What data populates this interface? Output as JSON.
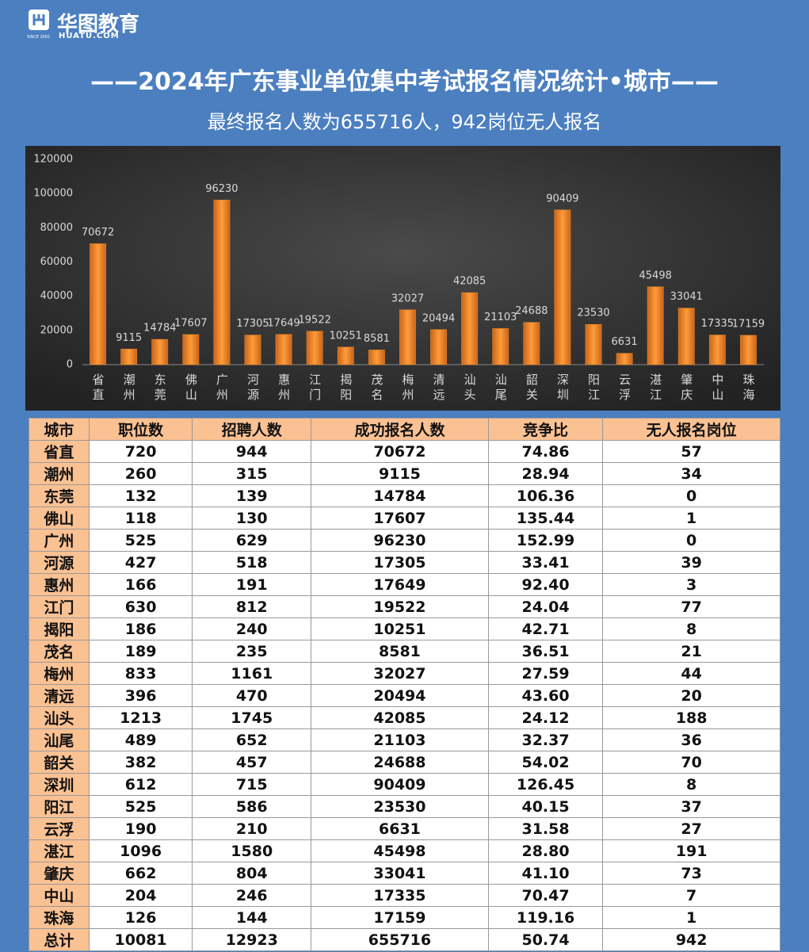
{
  "header": {
    "logo": {
      "brand": "华图教育",
      "site": "HUATU.COM",
      "since": "SINCE 2001"
    },
    "title": "——2024年广东事业单位集中考试报名情况统计•城市——",
    "subtitle": "最终报名人数为655716人，942岗位无人报名"
  },
  "chart_data": {
    "type": "bar",
    "categories": [
      "省直",
      "潮州",
      "东莞",
      "佛山",
      "广州",
      "河源",
      "惠州",
      "江门",
      "揭阳",
      "茂名",
      "梅州",
      "清远",
      "汕头",
      "汕尾",
      "韶关",
      "深圳",
      "阳江",
      "云浮",
      "湛江",
      "肇庆",
      "中山",
      "珠海"
    ],
    "values": [
      70672,
      9115,
      14784,
      17607,
      96230,
      17305,
      17649,
      19522,
      10251,
      8581,
      32027,
      20494,
      42085,
      21103,
      24688,
      90409,
      23530,
      6631,
      45498,
      33041,
      17335,
      17159
    ],
    "color": "#f08a24",
    "ylim": [
      0,
      120000
    ],
    "yticks": [
      0,
      20000,
      40000,
      60000,
      80000,
      100000,
      120000
    ],
    "grid": false
  },
  "table": {
    "header": [
      "城市",
      "职位数",
      "招聘人数",
      "成功报名人数",
      "竞争比",
      "无人报名岗位"
    ],
    "rows": [
      [
        "省直",
        "720",
        "944",
        "70672",
        "74.86",
        "57"
      ],
      [
        "潮州",
        "260",
        "315",
        "9115",
        "28.94",
        "34"
      ],
      [
        "东莞",
        "132",
        "139",
        "14784",
        "106.36",
        "0"
      ],
      [
        "佛山",
        "118",
        "130",
        "17607",
        "135.44",
        "1"
      ],
      [
        "广州",
        "525",
        "629",
        "96230",
        "152.99",
        "0"
      ],
      [
        "河源",
        "427",
        "518",
        "17305",
        "33.41",
        "39"
      ],
      [
        "惠州",
        "166",
        "191",
        "17649",
        "92.40",
        "3"
      ],
      [
        "江门",
        "630",
        "812",
        "19522",
        "24.04",
        "77"
      ],
      [
        "揭阳",
        "186",
        "240",
        "10251",
        "42.71",
        "8"
      ],
      [
        "茂名",
        "189",
        "235",
        "8581",
        "36.51",
        "21"
      ],
      [
        "梅州",
        "833",
        "1161",
        "32027",
        "27.59",
        "44"
      ],
      [
        "清远",
        "396",
        "470",
        "20494",
        "43.60",
        "20"
      ],
      [
        "汕头",
        "1213",
        "1745",
        "42085",
        "24.12",
        "188"
      ],
      [
        "汕尾",
        "489",
        "652",
        "21103",
        "32.37",
        "36"
      ],
      [
        "韶关",
        "382",
        "457",
        "24688",
        "54.02",
        "70"
      ],
      [
        "深圳",
        "612",
        "715",
        "90409",
        "126.45",
        "8"
      ],
      [
        "阳江",
        "525",
        "586",
        "23530",
        "40.15",
        "37"
      ],
      [
        "云浮",
        "190",
        "210",
        "6631",
        "31.58",
        "27"
      ],
      [
        "湛江",
        "1096",
        "1580",
        "45498",
        "28.80",
        "191"
      ],
      [
        "肇庆",
        "662",
        "804",
        "33041",
        "41.10",
        "73"
      ],
      [
        "中山",
        "204",
        "246",
        "17335",
        "70.47",
        "7"
      ],
      [
        "珠海",
        "126",
        "144",
        "17159",
        "119.16",
        "1"
      ],
      [
        "总计",
        "10081",
        "12923",
        "655716",
        "50.74",
        "942"
      ]
    ]
  }
}
